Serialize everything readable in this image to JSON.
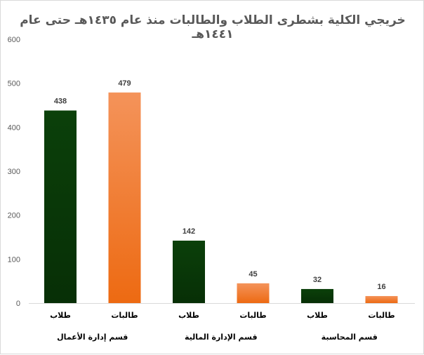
{
  "chart_data": {
    "type": "bar",
    "title_lines": [
      "خريجي الكلية بشطرى الطلاب والطالبات منذ عام ١٤٣٥هـ حتى عام",
      "١٤٤١هـ"
    ],
    "ylim": [
      0,
      600
    ],
    "yticks": [
      0,
      100,
      200,
      300,
      400,
      500,
      600
    ],
    "grid": false,
    "legend": "none",
    "bars": [
      {
        "group": "قسم إدارة الأعمال",
        "label": "طلاب",
        "value": 438,
        "color": "#0a3d08"
      },
      {
        "group": "قسم إدارة الأعمال",
        "label": "طالبات",
        "value": 479,
        "color": "#f47c25"
      },
      {
        "group": "قسم الإدارة المالية",
        "label": "طلاب",
        "value": 142,
        "color": "#0a3d08"
      },
      {
        "group": "قسم الإدارة المالية",
        "label": "طالبات",
        "value": 45,
        "color": "#f47c25"
      },
      {
        "group": "قسم المحاسبة",
        "label": "طلاب",
        "value": 32,
        "color": "#0a3d08"
      },
      {
        "group": "قسم المحاسبة",
        "label": "طالبات",
        "value": 16,
        "color": "#f47c25"
      }
    ],
    "groups": [
      "قسم إدارة الأعمال",
      "قسم الإدارة المالية",
      "قسم المحاسبة"
    ]
  }
}
